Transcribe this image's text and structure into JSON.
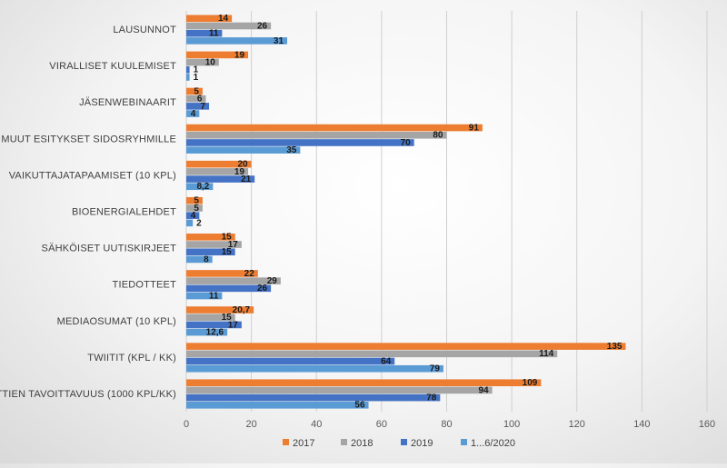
{
  "chart_data": {
    "type": "bar",
    "orientation": "horizontal",
    "categories": [
      "LAUSUNNOT",
      "VIRALLISET KUULEMISET",
      "JÄSENWEBINAARIT",
      "MUUT ESITYKSET SIDOSRYHMILLE",
      "VAIKUTTAJATAPAAMISET (10 KPL)",
      "BIOENERGIALEHDET",
      "SÄHKÖISET UUTISKIRJEET",
      "TIEDOTTEET",
      "MEDIAOSUMAT (10 KPL)",
      "TWIITIT (KPL / KK)",
      "TWIITTIEN TAVOITTAVUUS (1000 KPL/KK)"
    ],
    "series": [
      {
        "name": "2017",
        "color": "#ED7D31",
        "values": [
          14,
          19,
          5,
          91,
          20,
          5,
          15,
          22,
          20.7,
          135,
          109
        ],
        "labels": [
          "14",
          "19",
          "5",
          "91",
          "20",
          "5",
          "15",
          "22",
          "20,7",
          "135",
          "109"
        ]
      },
      {
        "name": "2018",
        "color": "#A5A5A5",
        "values": [
          26,
          10,
          6,
          80,
          19,
          5,
          17,
          29,
          15,
          114,
          94
        ],
        "labels": [
          "26",
          "10",
          "6",
          "80",
          "19",
          "5",
          "17",
          "29",
          "15",
          "114",
          "94"
        ]
      },
      {
        "name": "2019",
        "color": "#4472C4",
        "values": [
          11,
          1,
          7,
          70,
          21,
          4,
          15,
          26,
          17,
          64,
          78
        ],
        "labels": [
          "11",
          "1",
          "7",
          "70",
          "21",
          "4",
          "15",
          "26",
          "17",
          "64",
          "78"
        ]
      },
      {
        "name": "1...6/2020",
        "color": "#5B9BD5",
        "values": [
          31,
          1,
          4,
          35,
          8.2,
          2,
          8,
          11,
          12.6,
          79,
          56
        ],
        "labels": [
          "31",
          "1",
          "4",
          "35",
          "8,2",
          "2",
          "8",
          "11",
          "12,6",
          "79",
          "56"
        ]
      }
    ],
    "xlim": [
      0,
      160
    ],
    "ticks": [
      "0",
      "20",
      "40",
      "60",
      "80",
      "100",
      "120",
      "140",
      "160"
    ],
    "grid": true,
    "legend_position": "bottom",
    "title": "",
    "xlabel": "",
    "ylabel": ""
  }
}
